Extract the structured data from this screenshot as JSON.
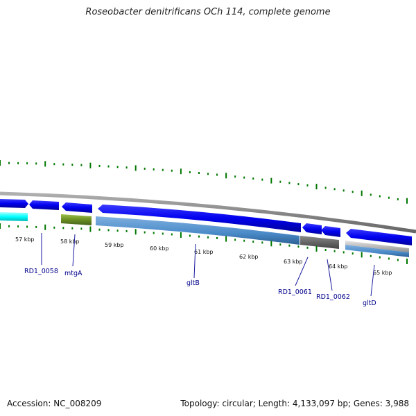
{
  "title": "Roseobacter denitrificans OCh 114, complete genome",
  "footer": {
    "accession": "Accession: NC_008209",
    "summary": "Topology: circular; Length: 4,133,097 bp; Genes: 3,988"
  },
  "colors": {
    "forward_gene": "#0000ee",
    "reverse_gene": "#4a8ac8",
    "cyan_feature": "#00ffff",
    "olive_feature": "#6b8e23",
    "gray_feature": "#666666",
    "silver_feature": "#bbbbbb",
    "tick": "#007700",
    "label": "#00008b"
  },
  "scale_labels": [
    "57 kbp",
    "58 kbp",
    "59 kbp",
    "60 kbp",
    "61 kbp",
    "62 kbp",
    "63 kbp",
    "64 kbp",
    "65 kbp"
  ],
  "gene_labels": [
    "RD1_0058",
    "mtgA",
    "gltB",
    "RD1_0061",
    "RD1_0062",
    "gltD"
  ]
}
